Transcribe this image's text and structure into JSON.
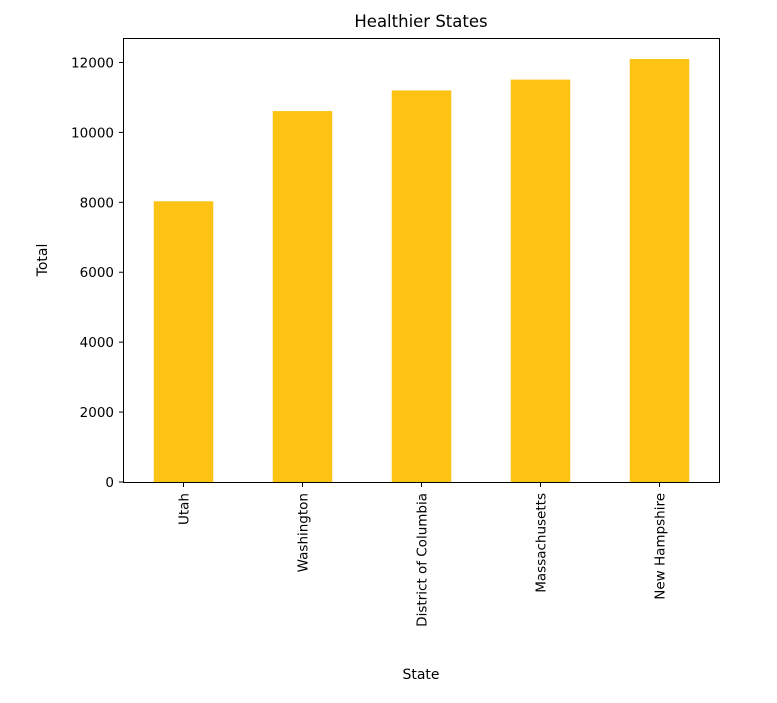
{
  "chart_data": {
    "type": "bar",
    "title": "Healthier States",
    "xlabel": "State",
    "ylabel": "Total",
    "categories": [
      "Utah",
      "Washington",
      "District of Columbia",
      "Massachusetts",
      "New Hampshire"
    ],
    "values": [
      8030,
      10610,
      11200,
      11510,
      12100
    ],
    "ylim": [
      0,
      12700
    ],
    "yticks": [
      0,
      2000,
      4000,
      6000,
      8000,
      10000,
      12000
    ],
    "ytick_labels": [
      "0",
      "2000",
      "4000",
      "6000",
      "8000",
      "10000",
      "12000"
    ],
    "bar_color": "#fcc314",
    "grid": false,
    "legend": "none",
    "xtick_rotation": "vertical"
  }
}
